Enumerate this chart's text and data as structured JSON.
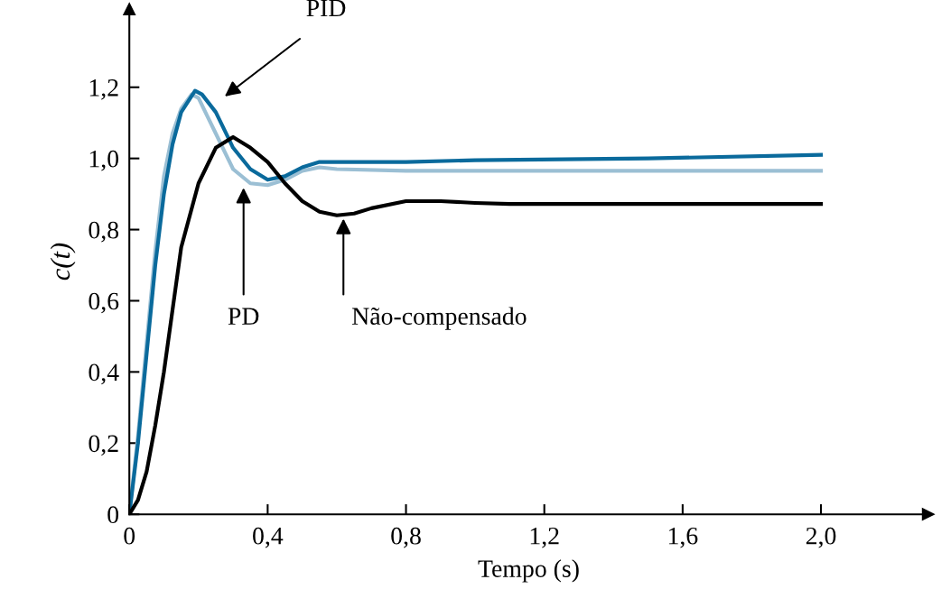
{
  "chart_data": {
    "type": "line",
    "xlabel": "Tempo (s)",
    "ylabel": "c(t)",
    "xlim": [
      0,
      2.31
    ],
    "ylim": [
      0,
      1.42
    ],
    "xticks": [
      {
        "value": 0,
        "label": "0"
      },
      {
        "value": 0.4,
        "label": "0,4"
      },
      {
        "value": 0.8,
        "label": "0,8"
      },
      {
        "value": 1.2,
        "label": "1,2"
      },
      {
        "value": 1.6,
        "label": "1,6"
      },
      {
        "value": 2.0,
        "label": "2,0"
      }
    ],
    "yticks": [
      {
        "value": 0,
        "label": "0"
      },
      {
        "value": 0.2,
        "label": "0,2"
      },
      {
        "value": 0.4,
        "label": "0,4"
      },
      {
        "value": 0.6,
        "label": "0,6"
      },
      {
        "value": 0.8,
        "label": "0,8"
      },
      {
        "value": 1.0,
        "label": "1,0"
      },
      {
        "value": 1.2,
        "label": "1,2"
      }
    ],
    "grid": false,
    "legend": false,
    "marker": "none",
    "line_style": "solid",
    "series": [
      {
        "color": "#9bbfd4",
        "x": [
          0,
          0.025,
          0.05,
          0.075,
          0.1,
          0.125,
          0.15,
          0.18,
          0.2,
          0.225,
          0.25,
          0.3,
          0.35,
          0.4,
          0.45,
          0.5,
          0.55,
          0.6,
          0.8,
          1.0,
          1.5,
          2.0
        ],
        "values": [
          0,
          0.22,
          0.48,
          0.74,
          0.95,
          1.07,
          1.14,
          1.18,
          1.17,
          1.12,
          1.07,
          0.97,
          0.93,
          0.925,
          0.94,
          0.965,
          0.975,
          0.97,
          0.965,
          0.965,
          0.965,
          0.965
        ]
      },
      {
        "color": "#0a6a9c",
        "x": [
          0,
          0.025,
          0.05,
          0.075,
          0.1,
          0.125,
          0.15,
          0.19,
          0.21,
          0.25,
          0.3,
          0.35,
          0.4,
          0.45,
          0.5,
          0.55,
          0.6,
          0.8,
          1.0,
          1.5,
          2.0
        ],
        "values": [
          0,
          0.2,
          0.45,
          0.7,
          0.9,
          1.04,
          1.13,
          1.19,
          1.18,
          1.13,
          1.03,
          0.97,
          0.94,
          0.95,
          0.975,
          0.99,
          0.99,
          0.99,
          0.995,
          1.0,
          1.01
        ]
      },
      {
        "color": "#000000",
        "x": [
          0,
          0.025,
          0.05,
          0.075,
          0.1,
          0.15,
          0.2,
          0.25,
          0.3,
          0.35,
          0.4,
          0.45,
          0.5,
          0.55,
          0.6,
          0.65,
          0.7,
          0.8,
          0.9,
          1.0,
          1.1,
          2.0
        ],
        "values": [
          0,
          0.04,
          0.12,
          0.25,
          0.4,
          0.75,
          0.93,
          1.03,
          1.06,
          1.03,
          0.99,
          0.93,
          0.88,
          0.85,
          0.84,
          0.845,
          0.86,
          0.88,
          0.88,
          0.875,
          0.872,
          0.872
        ]
      }
    ],
    "annotations": [
      "PID",
      "PD",
      "Não-compensado"
    ]
  }
}
